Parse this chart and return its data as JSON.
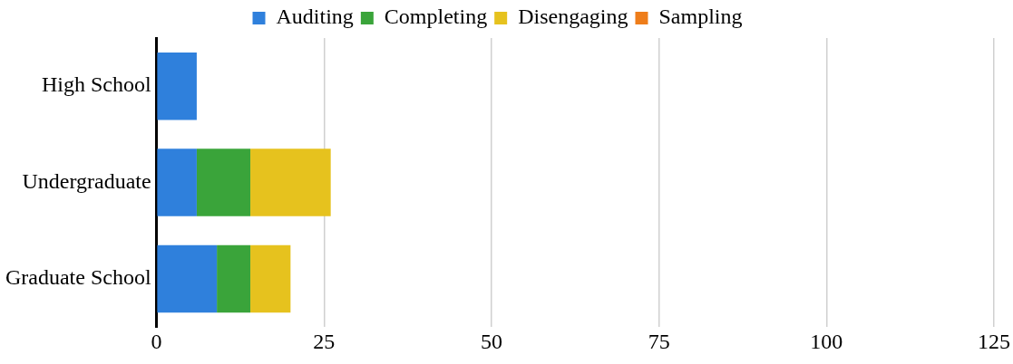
{
  "chart_data": {
    "type": "bar",
    "orientation": "horizontal",
    "stacked": true,
    "categories": [
      "High School",
      "Undergraduate",
      "Graduate School"
    ],
    "series": [
      {
        "name": "Auditing",
        "color": "#2f80dc",
        "values": [
          6,
          6,
          9
        ]
      },
      {
        "name": "Completing",
        "color": "#3aa43a",
        "values": [
          0,
          8,
          5
        ]
      },
      {
        "name": "Disengaging",
        "color": "#e6c21e",
        "values": [
          0,
          12,
          6
        ]
      },
      {
        "name": "Sampling",
        "color": "#ee7d1a",
        "values": [
          0,
          0,
          0
        ]
      }
    ],
    "xlim": [
      0,
      125
    ],
    "xticks": [
      0,
      25,
      50,
      75,
      100,
      125
    ],
    "grid": "x",
    "legend": "top"
  }
}
